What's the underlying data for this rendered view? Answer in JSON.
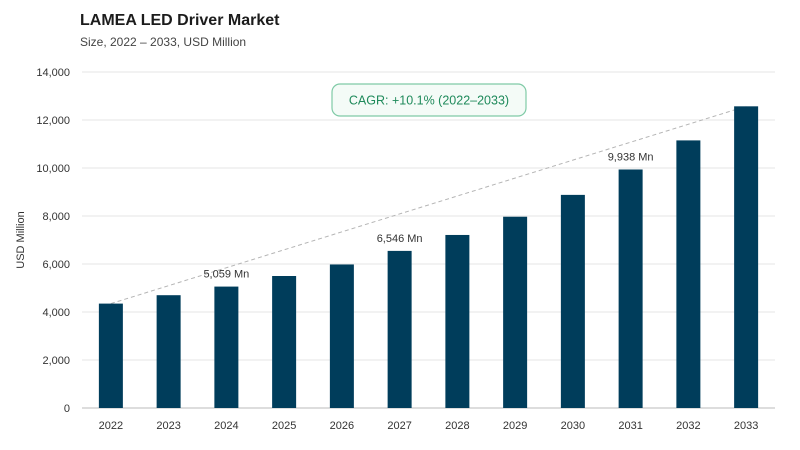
{
  "title": "LAMEA LED Driver Market",
  "subtitle": "Size, 2022 – 2033, USD Million",
  "chart_data": {
    "type": "bar",
    "categories": [
      "2022",
      "2023",
      "2024",
      "2025",
      "2026",
      "2027",
      "2028",
      "2029",
      "2030",
      "2031",
      "2032",
      "2033"
    ],
    "values": [
      4350,
      4700,
      5059,
      5500,
      5980,
      6546,
      7210,
      7970,
      8880,
      9938,
      11150,
      12570
    ],
    "ylabel": "USD Million",
    "ylim": [
      0,
      14000
    ],
    "yticks": [
      0,
      2000,
      4000,
      6000,
      8000,
      10000,
      12000,
      14000
    ],
    "ytick_labels": [
      "0",
      "2,000",
      "4,000",
      "6,000",
      "8,000",
      "10,000",
      "12,000",
      "14,000"
    ],
    "grid": true,
    "bar_color": "#003d5b",
    "data_labels": [
      {
        "category": "2024",
        "text": "5,059 Mn"
      },
      {
        "category": "2027",
        "text": "6,546 Mn"
      },
      {
        "category": "2031",
        "text": "9,938 Mn"
      }
    ],
    "annotation": {
      "text": "CAGR: +10.1% (2022–2033)",
      "color": "#1f8a5b",
      "trend_from": "2022",
      "trend_to": "2033"
    }
  }
}
